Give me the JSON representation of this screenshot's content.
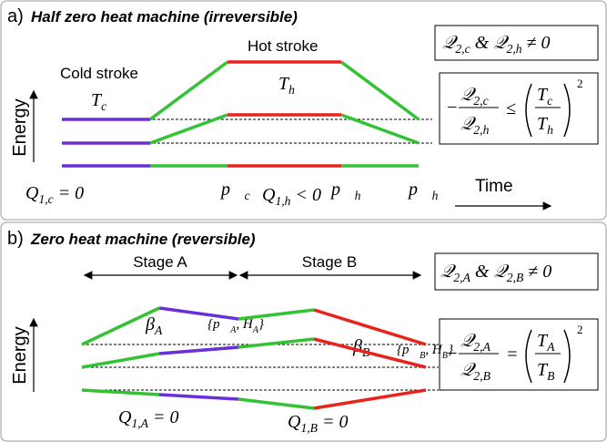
{
  "panel_a": {
    "label": "a)",
    "title": "Half zero heat machine (irreversible)",
    "condition": [
      {
        "t": "𝒬"
      },
      {
        "t": "2,c",
        "s": "sub"
      },
      {
        "t": " & 𝒬"
      },
      {
        "t": "2,h",
        "s": "sub"
      },
      {
        "t": " ≠ 0"
      }
    ],
    "bound": {
      "sign": "−",
      "numerator": [
        {
          "t": "𝒬"
        },
        {
          "t": "2,c",
          "s": "sub"
        }
      ],
      "denominator": [
        {
          "t": "𝒬"
        },
        {
          "t": "2,h",
          "s": "sub"
        }
      ],
      "relation": "≤",
      "right_numerator": [
        {
          "t": "T"
        },
        {
          "t": "c",
          "s": "sub"
        }
      ],
      "right_denominator": [
        {
          "t": "T"
        },
        {
          "t": "h",
          "s": "sub"
        }
      ],
      "exponent": "2"
    },
    "cold_stroke": "Cold stroke",
    "cold_temperature": [
      {
        "t": "T"
      },
      {
        "t": "c",
        "s": "sub"
      }
    ],
    "hot_stroke": "Hot stroke",
    "hot_temperature": [
      {
        "t": "T"
      },
      {
        "t": "h",
        "s": "sub"
      }
    ],
    "energy_axis": "Energy",
    "time_axis": "Time",
    "labels": [
      [
        {
          "t": "Q"
        },
        {
          "t": "1,c",
          "s": "sub"
        },
        {
          "t": " = 0"
        }
      ],
      [
        {
          "t": "p⃗"
        },
        {
          "t": "c",
          "s": "sub"
        }
      ],
      [
        {
          "t": "Q"
        },
        {
          "t": "1,h",
          "s": "sub"
        },
        {
          "t": " < 0"
        }
      ],
      [
        {
          "t": "p⃗"
        },
        {
          "t": "h",
          "s": "sub"
        }
      ],
      [
        {
          "t": "p⃗"
        },
        {
          "t": "h",
          "s": "sub"
        }
      ]
    ]
  },
  "panel_b": {
    "label": "b)",
    "title": "Zero heat machine (reversible)",
    "stage_a": "Stage A",
    "stage_b": "Stage B",
    "condition": [
      {
        "t": "𝒬"
      },
      {
        "t": "2,A",
        "s": "sub"
      },
      {
        "t": " & 𝒬"
      },
      {
        "t": "2,B",
        "s": "sub"
      },
      {
        "t": " ≠ 0"
      }
    ],
    "bound": {
      "sign": "−",
      "numerator": [
        {
          "t": "𝒬"
        },
        {
          "t": "2,A",
          "s": "sub"
        }
      ],
      "denominator": [
        {
          "t": "𝒬"
        },
        {
          "t": "2,B",
          "s": "sub"
        }
      ],
      "relation": "=",
      "right_numerator": [
        {
          "t": "T"
        },
        {
          "t": "A",
          "s": "sub"
        }
      ],
      "right_denominator": [
        {
          "t": "T"
        },
        {
          "t": "B",
          "s": "sub"
        }
      ],
      "exponent": "2"
    },
    "beta_a": [
      {
        "t": "β"
      },
      {
        "t": "A",
        "s": "sub"
      }
    ],
    "params_a": [
      {
        "t": "{p⃗"
      },
      {
        "t": "A",
        "s": "sub"
      },
      {
        "t": ", H"
      },
      {
        "t": "A",
        "s": "sub"
      },
      {
        "t": "}"
      }
    ],
    "beta_b": [
      {
        "t": "β"
      },
      {
        "t": "B",
        "s": "sub"
      }
    ],
    "params_b": [
      {
        "t": "{p⃗"
      },
      {
        "t": "B",
        "s": "sub"
      },
      {
        "t": ", H"
      },
      {
        "t": "B",
        "s": "sub"
      },
      {
        "t": "}"
      }
    ],
    "energy_axis": "Energy",
    "labels": [
      [
        {
          "t": "Q"
        },
        {
          "t": "1,A",
          "s": "sub"
        },
        {
          "t": " = 0"
        }
      ],
      [
        {
          "t": "Q"
        },
        {
          "t": "1,B",
          "s": "sub"
        },
        {
          "t": " = 0"
        }
      ]
    ]
  }
}
